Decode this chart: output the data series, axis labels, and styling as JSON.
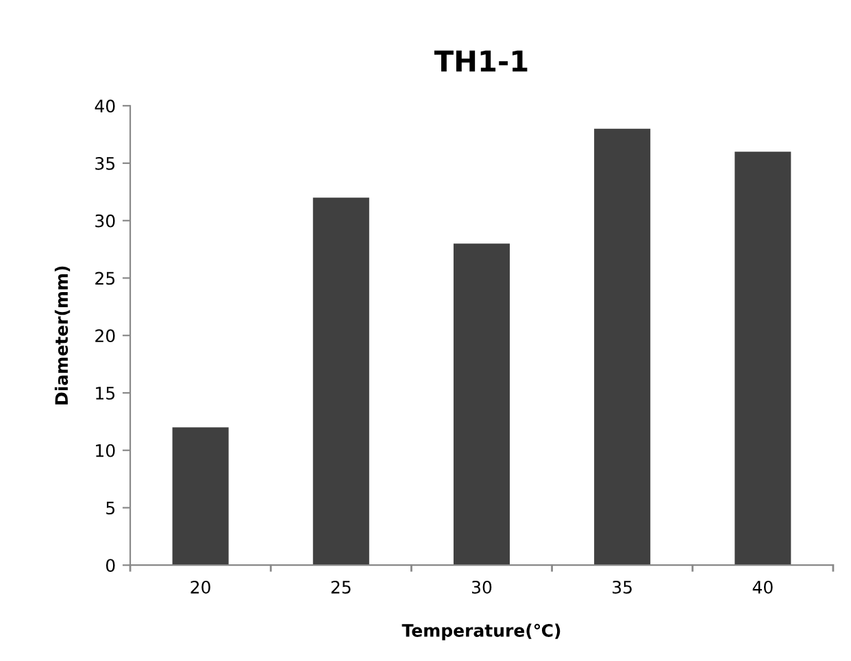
{
  "chart_data": {
    "type": "bar",
    "title": "TH1-1",
    "xlabel": "Temperature(℃)",
    "ylabel": "Diameter(mm)",
    "categories": [
      "20",
      "25",
      "30",
      "35",
      "40"
    ],
    "values": [
      12,
      32,
      28,
      38,
      36
    ],
    "color": "#404040",
    "ylim": [
      0,
      40
    ],
    "yticks": [
      0,
      5,
      10,
      15,
      20,
      25,
      30,
      35,
      40
    ],
    "grid": false,
    "legend": false
  }
}
